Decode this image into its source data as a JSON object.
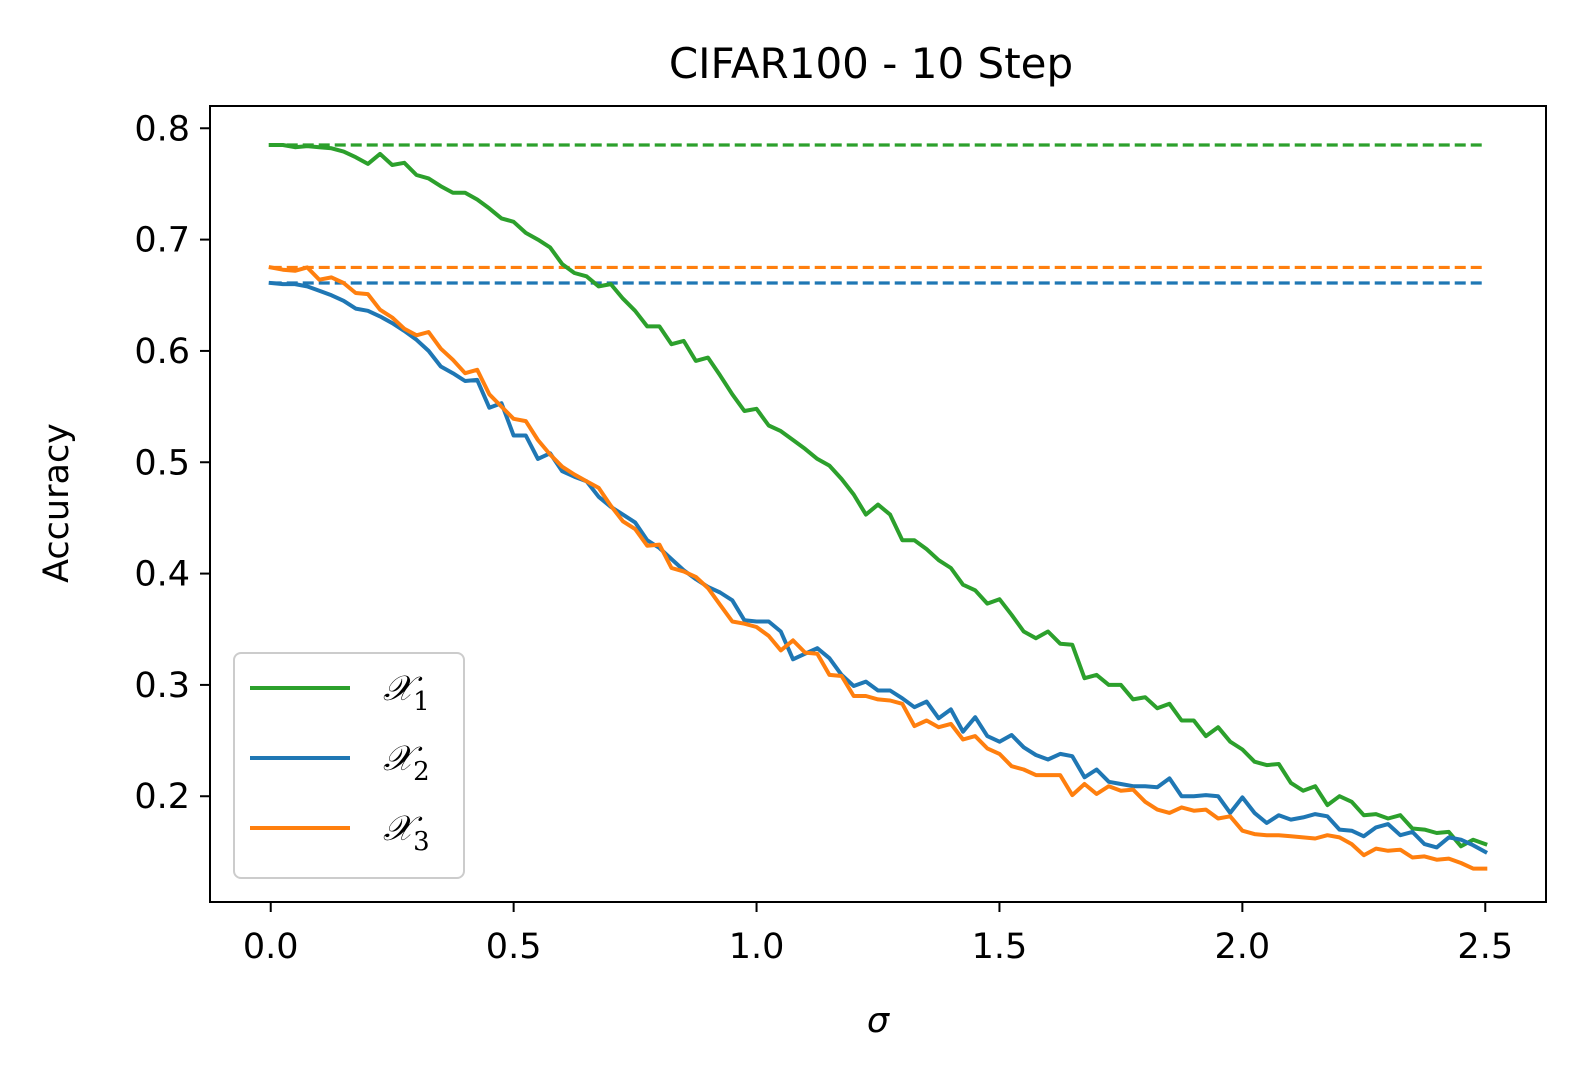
{
  "chart_data": {
    "type": "line",
    "title": "CIFAR100 - 10 Step",
    "xlabel": "σ",
    "ylabel": "Accuracy",
    "xlim": [
      -0.125,
      2.625
    ],
    "ylim": [
      0.105,
      0.82
    ],
    "xticks": [
      0.0,
      0.5,
      1.0,
      1.5,
      2.0,
      2.5
    ],
    "xtick_labels": [
      "0.0",
      "0.5",
      "1.0",
      "1.5",
      "2.0",
      "2.5"
    ],
    "yticks": [
      0.2,
      0.3,
      0.4,
      0.5,
      0.6,
      0.7,
      0.8
    ],
    "ytick_labels": [
      "0.2",
      "0.3",
      "0.4",
      "0.5",
      "0.6",
      "0.7",
      "0.8"
    ],
    "grid": false,
    "legend_position": "bottom-left",
    "series": [
      {
        "name": "𝒳1",
        "legend_base": "𝒳",
        "legend_sub": "1",
        "color": "#2ca02c",
        "baseline": 0.785,
        "points": [
          [
            0.0,
            0.785
          ],
          [
            0.025,
            0.785
          ],
          [
            0.05,
            0.783
          ],
          [
            0.075,
            0.784
          ],
          [
            0.1,
            0.783
          ],
          [
            0.125,
            0.782
          ],
          [
            0.15,
            0.779
          ],
          [
            0.175,
            0.774
          ],
          [
            0.2,
            0.768
          ],
          [
            0.225,
            0.777
          ],
          [
            0.25,
            0.767
          ],
          [
            0.275,
            0.769
          ],
          [
            0.3,
            0.758
          ],
          [
            0.325,
            0.755
          ],
          [
            0.35,
            0.748
          ],
          [
            0.375,
            0.742
          ],
          [
            0.4,
            0.742
          ],
          [
            0.425,
            0.736
          ],
          [
            0.45,
            0.728
          ],
          [
            0.475,
            0.719
          ],
          [
            0.5,
            0.716
          ],
          [
            0.525,
            0.706
          ],
          [
            0.55,
            0.7
          ],
          [
            0.575,
            0.693
          ],
          [
            0.6,
            0.678
          ],
          [
            0.625,
            0.67
          ],
          [
            0.65,
            0.667
          ],
          [
            0.675,
            0.658
          ],
          [
            0.7,
            0.66
          ],
          [
            0.725,
            0.647
          ],
          [
            0.75,
            0.636
          ],
          [
            0.775,
            0.622
          ],
          [
            0.8,
            0.622
          ],
          [
            0.825,
            0.606
          ],
          [
            0.85,
            0.609
          ],
          [
            0.875,
            0.591
          ],
          [
            0.9,
            0.594
          ],
          [
            0.925,
            0.578
          ],
          [
            0.95,
            0.561
          ],
          [
            0.975,
            0.546
          ],
          [
            1.0,
            0.548
          ],
          [
            1.025,
            0.533
          ],
          [
            1.05,
            0.528
          ],
          [
            1.075,
            0.52
          ],
          [
            1.1,
            0.512
          ],
          [
            1.125,
            0.503
          ],
          [
            1.15,
            0.497
          ],
          [
            1.175,
            0.485
          ],
          [
            1.2,
            0.471
          ],
          [
            1.225,
            0.453
          ],
          [
            1.25,
            0.462
          ],
          [
            1.275,
            0.453
          ],
          [
            1.3,
            0.43
          ],
          [
            1.325,
            0.43
          ],
          [
            1.35,
            0.422
          ],
          [
            1.375,
            0.412
          ],
          [
            1.4,
            0.405
          ],
          [
            1.425,
            0.39
          ],
          [
            1.45,
            0.385
          ],
          [
            1.475,
            0.373
          ],
          [
            1.5,
            0.377
          ],
          [
            1.525,
            0.363
          ],
          [
            1.55,
            0.348
          ],
          [
            1.575,
            0.342
          ],
          [
            1.6,
            0.348
          ],
          [
            1.625,
            0.337
          ],
          [
            1.65,
            0.336
          ],
          [
            1.675,
            0.306
          ],
          [
            1.7,
            0.309
          ],
          [
            1.725,
            0.3
          ],
          [
            1.75,
            0.3
          ],
          [
            1.775,
            0.287
          ],
          [
            1.8,
            0.289
          ],
          [
            1.825,
            0.279
          ],
          [
            1.85,
            0.283
          ],
          [
            1.875,
            0.268
          ],
          [
            1.9,
            0.268
          ],
          [
            1.925,
            0.254
          ],
          [
            1.95,
            0.262
          ],
          [
            1.975,
            0.249
          ],
          [
            2.0,
            0.242
          ],
          [
            2.025,
            0.231
          ],
          [
            2.05,
            0.228
          ],
          [
            2.075,
            0.229
          ],
          [
            2.1,
            0.212
          ],
          [
            2.125,
            0.205
          ],
          [
            2.15,
            0.209
          ],
          [
            2.175,
            0.192
          ],
          [
            2.2,
            0.2
          ],
          [
            2.225,
            0.195
          ],
          [
            2.25,
            0.183
          ],
          [
            2.275,
            0.184
          ],
          [
            2.3,
            0.18
          ],
          [
            2.325,
            0.183
          ],
          [
            2.35,
            0.171
          ],
          [
            2.375,
            0.17
          ],
          [
            2.4,
            0.167
          ],
          [
            2.425,
            0.168
          ],
          [
            2.45,
            0.155
          ],
          [
            2.475,
            0.161
          ],
          [
            2.5,
            0.157
          ]
        ]
      },
      {
        "name": "𝒳2",
        "legend_base": "𝒳",
        "legend_sub": "2",
        "color": "#1f77b4",
        "baseline": 0.661,
        "points": [
          [
            0.0,
            0.661
          ],
          [
            0.025,
            0.66
          ],
          [
            0.05,
            0.66
          ],
          [
            0.075,
            0.658
          ],
          [
            0.1,
            0.654
          ],
          [
            0.125,
            0.65
          ],
          [
            0.15,
            0.645
          ],
          [
            0.175,
            0.638
          ],
          [
            0.2,
            0.636
          ],
          [
            0.225,
            0.631
          ],
          [
            0.25,
            0.625
          ],
          [
            0.275,
            0.618
          ],
          [
            0.3,
            0.61
          ],
          [
            0.325,
            0.6
          ],
          [
            0.35,
            0.586
          ],
          [
            0.375,
            0.58
          ],
          [
            0.4,
            0.573
          ],
          [
            0.425,
            0.574
          ],
          [
            0.45,
            0.549
          ],
          [
            0.475,
            0.553
          ],
          [
            0.5,
            0.524
          ],
          [
            0.525,
            0.524
          ],
          [
            0.55,
            0.503
          ],
          [
            0.575,
            0.508
          ],
          [
            0.6,
            0.492
          ],
          [
            0.625,
            0.487
          ],
          [
            0.65,
            0.483
          ],
          [
            0.675,
            0.469
          ],
          [
            0.7,
            0.46
          ],
          [
            0.725,
            0.453
          ],
          [
            0.75,
            0.446
          ],
          [
            0.775,
            0.43
          ],
          [
            0.8,
            0.423
          ],
          [
            0.825,
            0.413
          ],
          [
            0.85,
            0.403
          ],
          [
            0.875,
            0.395
          ],
          [
            0.9,
            0.388
          ],
          [
            0.925,
            0.383
          ],
          [
            0.95,
            0.376
          ],
          [
            0.975,
            0.358
          ],
          [
            1.0,
            0.357
          ],
          [
            1.025,
            0.357
          ],
          [
            1.05,
            0.348
          ],
          [
            1.075,
            0.323
          ],
          [
            1.1,
            0.328
          ],
          [
            1.125,
            0.333
          ],
          [
            1.15,
            0.324
          ],
          [
            1.175,
            0.309
          ],
          [
            1.2,
            0.299
          ],
          [
            1.225,
            0.303
          ],
          [
            1.25,
            0.295
          ],
          [
            1.275,
            0.295
          ],
          [
            1.3,
            0.288
          ],
          [
            1.325,
            0.28
          ],
          [
            1.35,
            0.285
          ],
          [
            1.375,
            0.27
          ],
          [
            1.4,
            0.278
          ],
          [
            1.425,
            0.258
          ],
          [
            1.45,
            0.271
          ],
          [
            1.475,
            0.254
          ],
          [
            1.5,
            0.249
          ],
          [
            1.525,
            0.255
          ],
          [
            1.55,
            0.244
          ],
          [
            1.575,
            0.237
          ],
          [
            1.6,
            0.233
          ],
          [
            1.625,
            0.238
          ],
          [
            1.65,
            0.236
          ],
          [
            1.675,
            0.217
          ],
          [
            1.7,
            0.224
          ],
          [
            1.725,
            0.213
          ],
          [
            1.75,
            0.211
          ],
          [
            1.775,
            0.209
          ],
          [
            1.8,
            0.209
          ],
          [
            1.825,
            0.208
          ],
          [
            1.85,
            0.216
          ],
          [
            1.875,
            0.2
          ],
          [
            1.9,
            0.2
          ],
          [
            1.925,
            0.201
          ],
          [
            1.95,
            0.2
          ],
          [
            1.975,
            0.185
          ],
          [
            2.0,
            0.199
          ],
          [
            2.025,
            0.185
          ],
          [
            2.05,
            0.176
          ],
          [
            2.075,
            0.183
          ],
          [
            2.1,
            0.179
          ],
          [
            2.125,
            0.181
          ],
          [
            2.15,
            0.184
          ],
          [
            2.175,
            0.182
          ],
          [
            2.2,
            0.17
          ],
          [
            2.225,
            0.169
          ],
          [
            2.25,
            0.164
          ],
          [
            2.275,
            0.172
          ],
          [
            2.3,
            0.175
          ],
          [
            2.325,
            0.165
          ],
          [
            2.35,
            0.168
          ],
          [
            2.375,
            0.157
          ],
          [
            2.4,
            0.154
          ],
          [
            2.425,
            0.163
          ],
          [
            2.45,
            0.161
          ],
          [
            2.475,
            0.156
          ],
          [
            2.5,
            0.15
          ]
        ]
      },
      {
        "name": "𝒳3",
        "legend_base": "𝒳",
        "legend_sub": "3",
        "color": "#ff7f0e",
        "baseline": 0.675,
        "points": [
          [
            0.0,
            0.675
          ],
          [
            0.025,
            0.673
          ],
          [
            0.05,
            0.672
          ],
          [
            0.075,
            0.675
          ],
          [
            0.1,
            0.664
          ],
          [
            0.125,
            0.666
          ],
          [
            0.15,
            0.661
          ],
          [
            0.175,
            0.652
          ],
          [
            0.2,
            0.651
          ],
          [
            0.225,
            0.637
          ],
          [
            0.25,
            0.63
          ],
          [
            0.275,
            0.62
          ],
          [
            0.3,
            0.614
          ],
          [
            0.325,
            0.617
          ],
          [
            0.35,
            0.602
          ],
          [
            0.375,
            0.592
          ],
          [
            0.4,
            0.58
          ],
          [
            0.425,
            0.583
          ],
          [
            0.45,
            0.561
          ],
          [
            0.475,
            0.55
          ],
          [
            0.5,
            0.539
          ],
          [
            0.525,
            0.537
          ],
          [
            0.55,
            0.52
          ],
          [
            0.575,
            0.507
          ],
          [
            0.6,
            0.496
          ],
          [
            0.625,
            0.489
          ],
          [
            0.65,
            0.483
          ],
          [
            0.675,
            0.477
          ],
          [
            0.7,
            0.461
          ],
          [
            0.725,
            0.447
          ],
          [
            0.75,
            0.44
          ],
          [
            0.775,
            0.425
          ],
          [
            0.8,
            0.426
          ],
          [
            0.825,
            0.405
          ],
          [
            0.85,
            0.402
          ],
          [
            0.875,
            0.397
          ],
          [
            0.9,
            0.387
          ],
          [
            0.925,
            0.372
          ],
          [
            0.95,
            0.357
          ],
          [
            0.975,
            0.355
          ],
          [
            1.0,
            0.352
          ],
          [
            1.025,
            0.344
          ],
          [
            1.05,
            0.331
          ],
          [
            1.075,
            0.34
          ],
          [
            1.1,
            0.329
          ],
          [
            1.125,
            0.328
          ],
          [
            1.15,
            0.309
          ],
          [
            1.175,
            0.308
          ],
          [
            1.2,
            0.29
          ],
          [
            1.225,
            0.29
          ],
          [
            1.25,
            0.287
          ],
          [
            1.275,
            0.286
          ],
          [
            1.3,
            0.283
          ],
          [
            1.325,
            0.263
          ],
          [
            1.35,
            0.268
          ],
          [
            1.375,
            0.262
          ],
          [
            1.4,
            0.265
          ],
          [
            1.425,
            0.251
          ],
          [
            1.45,
            0.254
          ],
          [
            1.475,
            0.243
          ],
          [
            1.5,
            0.238
          ],
          [
            1.525,
            0.227
          ],
          [
            1.55,
            0.224
          ],
          [
            1.575,
            0.219
          ],
          [
            1.6,
            0.219
          ],
          [
            1.625,
            0.219
          ],
          [
            1.65,
            0.201
          ],
          [
            1.675,
            0.211
          ],
          [
            1.7,
            0.202
          ],
          [
            1.725,
            0.209
          ],
          [
            1.75,
            0.205
          ],
          [
            1.775,
            0.206
          ],
          [
            1.8,
            0.195
          ],
          [
            1.825,
            0.188
          ],
          [
            1.85,
            0.185
          ],
          [
            1.875,
            0.19
          ],
          [
            1.9,
            0.187
          ],
          [
            1.925,
            0.188
          ],
          [
            1.95,
            0.18
          ],
          [
            1.975,
            0.182
          ],
          [
            2.0,
            0.169
          ],
          [
            2.025,
            0.166
          ],
          [
            2.05,
            0.165
          ],
          [
            2.075,
            0.165
          ],
          [
            2.1,
            0.164
          ],
          [
            2.125,
            0.163
          ],
          [
            2.15,
            0.162
          ],
          [
            2.175,
            0.165
          ],
          [
            2.2,
            0.163
          ],
          [
            2.225,
            0.157
          ],
          [
            2.25,
            0.147
          ],
          [
            2.275,
            0.153
          ],
          [
            2.3,
            0.151
          ],
          [
            2.325,
            0.152
          ],
          [
            2.35,
            0.145
          ],
          [
            2.375,
            0.146
          ],
          [
            2.4,
            0.143
          ],
          [
            2.425,
            0.144
          ],
          [
            2.45,
            0.14
          ],
          [
            2.475,
            0.135
          ],
          [
            2.5,
            0.135
          ]
        ]
      }
    ]
  }
}
